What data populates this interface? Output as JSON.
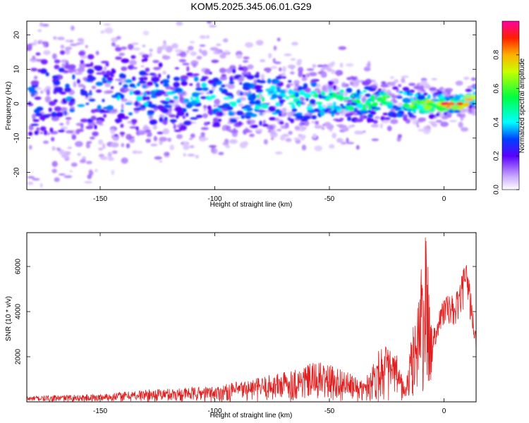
{
  "title": "KOM5.2025.345.06.01.G29",
  "chart_data": [
    {
      "type": "heatmap",
      "title": "KOM5.2025.345.06.01.G29",
      "xlabel": "Height of straight line (km)",
      "ylabel": "Frequency (Hz)",
      "xlim": [
        -182,
        14
      ],
      "ylim": [
        -25,
        24
      ],
      "x_ticks": [
        -150,
        -100,
        -50,
        0
      ],
      "y_ticks": [
        -20,
        -10,
        0,
        10,
        20
      ],
      "colorbar": {
        "label": "Normalized spectral amplitude",
        "range": [
          0.0,
          1.0
        ],
        "ticks": [
          0.0,
          0.2,
          0.4,
          0.6,
          0.8
        ]
      },
      "description_of_pattern": "Energy concentrated near 0 Hz; amplitude increases toward 0 km; spread broad at low heights",
      "ridge": [
        {
          "x": -170,
          "y": 2,
          "amp": 0.35
        },
        {
          "x": -140,
          "y": 3,
          "amp": 0.4
        },
        {
          "x": -110,
          "y": 2,
          "amp": 0.45
        },
        {
          "x": -80,
          "y": 1.5,
          "amp": 0.5
        },
        {
          "x": -50,
          "y": 1,
          "amp": 0.55
        },
        {
          "x": -30,
          "y": 0.5,
          "amp": 0.65
        },
        {
          "x": -10,
          "y": 0,
          "amp": 0.75
        },
        {
          "x": 0,
          "y": 0,
          "amp": 0.95
        },
        {
          "x": 8,
          "y": 0,
          "amp": 0.9
        },
        {
          "x": 13,
          "y": 2,
          "amp": 0.85
        }
      ]
    },
    {
      "type": "line",
      "xlabel": "Height of straight line (km)",
      "ylabel": "SNR (10 * v/v)",
      "xlim": [
        -182,
        14
      ],
      "ylim": [
        0,
        7500
      ],
      "x_ticks": [
        -150,
        -100,
        -50,
        0
      ],
      "y_ticks": [
        2000,
        4000,
        6000
      ],
      "color": "#e02020",
      "envelope": [
        {
          "x": -182,
          "y": 250
        },
        {
          "x": -150,
          "y": 350
        },
        {
          "x": -130,
          "y": 550
        },
        {
          "x": -100,
          "y": 700
        },
        {
          "x": -80,
          "y": 1100
        },
        {
          "x": -65,
          "y": 1500
        },
        {
          "x": -55,
          "y": 1800
        },
        {
          "x": -45,
          "y": 1500
        },
        {
          "x": -35,
          "y": 900
        },
        {
          "x": -27,
          "y": 2700
        },
        {
          "x": -20,
          "y": 2000
        },
        {
          "x": -17,
          "y": 600
        },
        {
          "x": -13,
          "y": 3800
        },
        {
          "x": -8,
          "y": 7500
        },
        {
          "x": -5,
          "y": 3200
        },
        {
          "x": 0,
          "y": 4800
        },
        {
          "x": 5,
          "y": 4700
        },
        {
          "x": 10,
          "y": 6400
        },
        {
          "x": 14,
          "y": 3000
        }
      ]
    }
  ]
}
